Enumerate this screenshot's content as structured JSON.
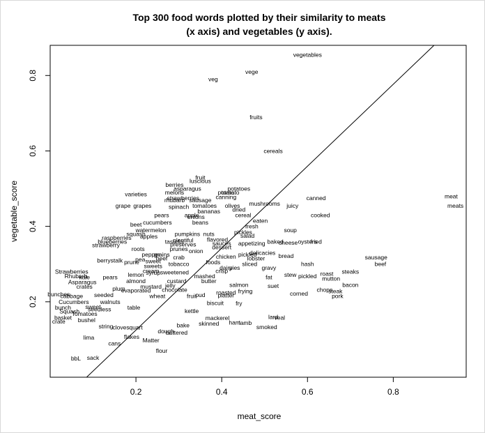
{
  "chart_data": {
    "type": "scatter",
    "title_line1": "Top 300 food words plotted by their similarity to meats",
    "title_line2": "(x axis) and vegetables (y axis).",
    "xlabel": "meat_score",
    "ylabel": "vegetable_score",
    "xlim": [
      0.0,
      0.97
    ],
    "ylim": [
      0.0,
      0.88
    ],
    "x_ticks": [
      0.2,
      0.4,
      0.6,
      0.8
    ],
    "y_ticks": [
      0.2,
      0.4,
      0.6,
      0.8
    ],
    "x_tick_labels": [
      "0.2",
      "0.4",
      "0.6",
      "0.8"
    ],
    "y_tick_labels": [
      "0.2",
      "0.4",
      "0.6",
      "0.8"
    ],
    "reference_line": {
      "x1": 0.085,
      "y1": 0.0,
      "x2": 0.895,
      "y2": 0.88
    },
    "points": [
      {
        "label": "vegetables",
        "x": 0.6,
        "y": 0.855
      },
      {
        "label": "vege",
        "x": 0.47,
        "y": 0.81
      },
      {
        "label": "veg",
        "x": 0.38,
        "y": 0.79
      },
      {
        "label": "fruits",
        "x": 0.48,
        "y": 0.69
      },
      {
        "label": "cereals",
        "x": 0.52,
        "y": 0.6
      },
      {
        "label": "fruit",
        "x": 0.35,
        "y": 0.53
      },
      {
        "label": "luscious",
        "x": 0.35,
        "y": 0.52
      },
      {
        "label": "berries",
        "x": 0.29,
        "y": 0.51
      },
      {
        "label": "asparagus",
        "x": 0.32,
        "y": 0.5
      },
      {
        "label": "potatoes",
        "x": 0.44,
        "y": 0.5
      },
      {
        "label": "melons",
        "x": 0.29,
        "y": 0.49
      },
      {
        "label": "potato",
        "x": 0.41,
        "y": 0.49
      },
      {
        "label": "tomato",
        "x": 0.42,
        "y": 0.49
      },
      {
        "label": "varieties",
        "x": 0.2,
        "y": 0.485
      },
      {
        "label": "strawberries",
        "x": 0.31,
        "y": 0.475
      },
      {
        "label": "canning",
        "x": 0.41,
        "y": 0.478
      },
      {
        "label": "rhubarb",
        "x": 0.29,
        "y": 0.47
      },
      {
        "label": "sausage",
        "x": 0.35,
        "y": 0.47
      },
      {
        "label": "canned",
        "x": 0.62,
        "y": 0.475
      },
      {
        "label": "meat",
        "x": 0.935,
        "y": 0.48
      },
      {
        "label": "meats",
        "x": 0.945,
        "y": 0.455
      },
      {
        "label": "grape",
        "x": 0.17,
        "y": 0.455
      },
      {
        "label": "grapes",
        "x": 0.215,
        "y": 0.455
      },
      {
        "label": "spinach",
        "x": 0.3,
        "y": 0.452
      },
      {
        "label": "tomatoes",
        "x": 0.36,
        "y": 0.455
      },
      {
        "label": "olives",
        "x": 0.425,
        "y": 0.455
      },
      {
        "label": "mushrooms",
        "x": 0.5,
        "y": 0.46
      },
      {
        "label": "juicy",
        "x": 0.565,
        "y": 0.455
      },
      {
        "label": "dried",
        "x": 0.44,
        "y": 0.445
      },
      {
        "label": "bananas",
        "x": 0.37,
        "y": 0.44
      },
      {
        "label": "cooked",
        "x": 0.63,
        "y": 0.43
      },
      {
        "label": "apple",
        "x": 0.33,
        "y": 0.43
      },
      {
        "label": "cereal",
        "x": 0.45,
        "y": 0.43
      },
      {
        "label": "pears",
        "x": 0.26,
        "y": 0.43
      },
      {
        "label": "beans",
        "x": 0.35,
        "y": 0.41
      },
      {
        "label": "onions",
        "x": 0.34,
        "y": 0.425
      },
      {
        "label": "cucumbers",
        "x": 0.25,
        "y": 0.41
      },
      {
        "label": "eaten",
        "x": 0.49,
        "y": 0.415
      },
      {
        "label": "beet",
        "x": 0.2,
        "y": 0.405
      },
      {
        "label": "watermelon",
        "x": 0.235,
        "y": 0.39
      },
      {
        "label": "fresh",
        "x": 0.47,
        "y": 0.4
      },
      {
        "label": "soup",
        "x": 0.56,
        "y": 0.39
      },
      {
        "label": "squash",
        "x": 0.2,
        "y": 0.38
      },
      {
        "label": "pickles",
        "x": 0.45,
        "y": 0.385
      },
      {
        "label": "salad",
        "x": 0.46,
        "y": 0.375
      },
      {
        "label": "raspberries",
        "x": 0.155,
        "y": 0.37
      },
      {
        "label": "apples",
        "x": 0.23,
        "y": 0.373
      },
      {
        "label": "pumpkins",
        "x": 0.32,
        "y": 0.38
      },
      {
        "label": "nuts",
        "x": 0.37,
        "y": 0.38
      },
      {
        "label": "flavored",
        "x": 0.39,
        "y": 0.365
      },
      {
        "label": "baked",
        "x": 0.525,
        "y": 0.36
      },
      {
        "label": "cheese",
        "x": 0.555,
        "y": 0.357
      },
      {
        "label": "oysters",
        "x": 0.6,
        "y": 0.36
      },
      {
        "label": "fried",
        "x": 0.62,
        "y": 0.36
      },
      {
        "label": "blueberries",
        "x": 0.145,
        "y": 0.36
      },
      {
        "label": "strawberry",
        "x": 0.13,
        "y": 0.35
      },
      {
        "label": "tasteful",
        "x": 0.29,
        "y": 0.36
      },
      {
        "label": "plentiful",
        "x": 0.31,
        "y": 0.363
      },
      {
        "label": "sauces",
        "x": 0.4,
        "y": 0.355
      },
      {
        "label": "appetizing",
        "x": 0.47,
        "y": 0.355
      },
      {
        "label": "preserves",
        "x": 0.31,
        "y": 0.352
      },
      {
        "label": "dessert",
        "x": 0.4,
        "y": 0.345
      },
      {
        "label": "roots",
        "x": 0.205,
        "y": 0.34
      },
      {
        "label": "prunes",
        "x": 0.3,
        "y": 0.34
      },
      {
        "label": "onion",
        "x": 0.34,
        "y": 0.335
      },
      {
        "label": "pepper",
        "x": 0.235,
        "y": 0.325
      },
      {
        "label": "grains",
        "x": 0.26,
        "y": 0.325
      },
      {
        "label": "chicken",
        "x": 0.41,
        "y": 0.32
      },
      {
        "label": "pickled",
        "x": 0.46,
        "y": 0.325
      },
      {
        "label": "delicacies",
        "x": 0.495,
        "y": 0.33
      },
      {
        "label": "bread",
        "x": 0.55,
        "y": 0.322
      },
      {
        "label": "berry",
        "x": 0.125,
        "y": 0.31
      },
      {
        "label": "stalk",
        "x": 0.155,
        "y": 0.31
      },
      {
        "label": "pea",
        "x": 0.21,
        "y": 0.312
      },
      {
        "label": "beef",
        "x": 0.26,
        "y": 0.315
      },
      {
        "label": "crab",
        "x": 0.3,
        "y": 0.318
      },
      {
        "label": "lobster",
        "x": 0.48,
        "y": 0.315
      },
      {
        "label": "sausage2",
        "x": 0.76,
        "y": 0.318,
        "text": "sausage"
      },
      {
        "label": "prune",
        "x": 0.19,
        "y": 0.305
      },
      {
        "label": "sweet",
        "x": 0.24,
        "y": 0.308
      },
      {
        "label": "tobacco",
        "x": 0.3,
        "y": 0.3
      },
      {
        "label": "foods",
        "x": 0.38,
        "y": 0.305
      },
      {
        "label": "sliced",
        "x": 0.465,
        "y": 0.3
      },
      {
        "label": "hash",
        "x": 0.6,
        "y": 0.3
      },
      {
        "label": "beef2",
        "x": 0.77,
        "y": 0.3,
        "text": "beef"
      },
      {
        "label": "sweets",
        "x": 0.24,
        "y": 0.295
      },
      {
        "label": "dairy",
        "x": 0.41,
        "y": 0.29
      },
      {
        "label": "pies",
        "x": 0.43,
        "y": 0.29
      },
      {
        "label": "gravy",
        "x": 0.51,
        "y": 0.29
      },
      {
        "label": "steaks",
        "x": 0.7,
        "y": 0.28
      },
      {
        "label": "Strawberries",
        "x": 0.05,
        "y": 0.28
      },
      {
        "label": "Rhubarb",
        "x": 0.06,
        "y": 0.268
      },
      {
        "label": "cream",
        "x": 0.235,
        "y": 0.282
      },
      {
        "label": "syrup",
        "x": 0.24,
        "y": 0.277
      },
      {
        "label": "sweetened",
        "x": 0.29,
        "y": 0.278
      },
      {
        "label": "crisp",
        "x": 0.4,
        "y": 0.282
      },
      {
        "label": "stew",
        "x": 0.56,
        "y": 0.272
      },
      {
        "label": "pickled2",
        "x": 0.6,
        "y": 0.268,
        "text": "pickled"
      },
      {
        "label": "roast",
        "x": 0.645,
        "y": 0.275
      },
      {
        "label": "kale",
        "x": 0.08,
        "y": 0.265
      },
      {
        "label": "pears2",
        "x": 0.14,
        "y": 0.265,
        "text": "pears"
      },
      {
        "label": "lemon",
        "x": 0.2,
        "y": 0.272
      },
      {
        "label": "mashed",
        "x": 0.36,
        "y": 0.268
      },
      {
        "label": "fat",
        "x": 0.51,
        "y": 0.265
      },
      {
        "label": "mutton",
        "x": 0.655,
        "y": 0.262
      },
      {
        "label": "Asparagus",
        "x": 0.075,
        "y": 0.252
      },
      {
        "label": "almond",
        "x": 0.2,
        "y": 0.255
      },
      {
        "label": "custard",
        "x": 0.295,
        "y": 0.255
      },
      {
        "label": "butter",
        "x": 0.37,
        "y": 0.255
      },
      {
        "label": "bacon",
        "x": 0.7,
        "y": 0.245
      },
      {
        "label": "crates",
        "x": 0.08,
        "y": 0.24
      },
      {
        "label": "plum",
        "x": 0.16,
        "y": 0.235
      },
      {
        "label": "mustard",
        "x": 0.235,
        "y": 0.24
      },
      {
        "label": "jelly",
        "x": 0.28,
        "y": 0.243
      },
      {
        "label": "oysters2",
        "x": 0.44,
        "y": 0.245,
        "text": "salmon"
      },
      {
        "label": "suet",
        "x": 0.52,
        "y": 0.242
      },
      {
        "label": "evaporated",
        "x": 0.2,
        "y": 0.23
      },
      {
        "label": "chocolate",
        "x": 0.29,
        "y": 0.232
      },
      {
        "label": "chops",
        "x": 0.64,
        "y": 0.232
      },
      {
        "label": "steak",
        "x": 0.665,
        "y": 0.228
      },
      {
        "label": "bunches",
        "x": 0.02,
        "y": 0.22
      },
      {
        "label": "cabbage",
        "x": 0.05,
        "y": 0.215
      },
      {
        "label": "seeded",
        "x": 0.125,
        "y": 0.218
      },
      {
        "label": "frying",
        "x": 0.455,
        "y": 0.228
      },
      {
        "label": "roasted",
        "x": 0.41,
        "y": 0.225
      },
      {
        "label": "corned",
        "x": 0.58,
        "y": 0.222
      },
      {
        "label": "pork",
        "x": 0.67,
        "y": 0.215
      },
      {
        "label": "wheat",
        "x": 0.25,
        "y": 0.215
      },
      {
        "label": "fruit2",
        "x": 0.33,
        "y": 0.215,
        "text": "fruit"
      },
      {
        "label": "pud",
        "x": 0.35,
        "y": 0.218
      },
      {
        "label": "platter",
        "x": 0.41,
        "y": 0.217
      },
      {
        "label": "Cucumbers",
        "x": 0.055,
        "y": 0.2
      },
      {
        "label": "walnuts",
        "x": 0.14,
        "y": 0.2
      },
      {
        "label": "biscuit",
        "x": 0.385,
        "y": 0.197
      },
      {
        "label": "fry",
        "x": 0.44,
        "y": 0.196
      },
      {
        "label": "bunch",
        "x": 0.03,
        "y": 0.185
      },
      {
        "label": "sweet2",
        "x": 0.1,
        "y": 0.187,
        "text": "sweet"
      },
      {
        "label": "seedless",
        "x": 0.115,
        "y": 0.18
      },
      {
        "label": "table",
        "x": 0.195,
        "y": 0.185
      },
      {
        "label": "Squash",
        "x": 0.045,
        "y": 0.175
      },
      {
        "label": "Tomatoes",
        "x": 0.08,
        "y": 0.168
      },
      {
        "label": "kettle",
        "x": 0.33,
        "y": 0.176
      },
      {
        "label": "lard",
        "x": 0.52,
        "y": 0.16
      },
      {
        "label": "veal",
        "x": 0.535,
        "y": 0.158
      },
      {
        "label": "basket",
        "x": 0.03,
        "y": 0.158
      },
      {
        "label": "bushel",
        "x": 0.085,
        "y": 0.152
      },
      {
        "label": "mackerel",
        "x": 0.39,
        "y": 0.157
      },
      {
        "label": "crate",
        "x": 0.02,
        "y": 0.148
      },
      {
        "label": "ham",
        "x": 0.43,
        "y": 0.145
      },
      {
        "label": "lamb",
        "x": 0.455,
        "y": 0.144
      },
      {
        "label": "string",
        "x": 0.13,
        "y": 0.135
      },
      {
        "label": "cloves",
        "x": 0.165,
        "y": 0.132
      },
      {
        "label": "quart",
        "x": 0.2,
        "y": 0.132
      },
      {
        "label": "bake",
        "x": 0.31,
        "y": 0.138
      },
      {
        "label": "skinned",
        "x": 0.37,
        "y": 0.142
      },
      {
        "label": "smoked",
        "x": 0.505,
        "y": 0.133
      },
      {
        "label": "dough",
        "x": 0.27,
        "y": 0.122
      },
      {
        "label": "buttered",
        "x": 0.295,
        "y": 0.118
      },
      {
        "label": "lima",
        "x": 0.09,
        "y": 0.105
      },
      {
        "label": "flakes",
        "x": 0.19,
        "y": 0.107
      },
      {
        "label": "Matter",
        "x": 0.235,
        "y": 0.098
      },
      {
        "label": "cans",
        "x": 0.15,
        "y": 0.09
      },
      {
        "label": "flour",
        "x": 0.26,
        "y": 0.07
      },
      {
        "label": "bbL",
        "x": 0.06,
        "y": 0.05
      },
      {
        "label": "sack",
        "x": 0.1,
        "y": 0.052
      }
    ]
  }
}
